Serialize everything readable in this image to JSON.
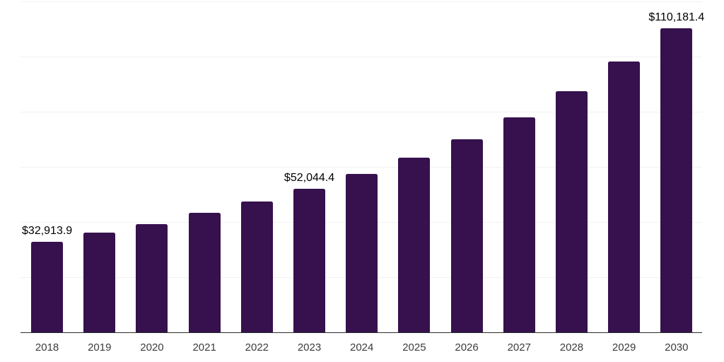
{
  "chart_data": {
    "type": "bar",
    "title": "",
    "xlabel": "",
    "ylabel": "",
    "categories": [
      "2018",
      "2019",
      "2020",
      "2021",
      "2022",
      "2023",
      "2024",
      "2025",
      "2026",
      "2027",
      "2028",
      "2029",
      "2030"
    ],
    "values": [
      32913.9,
      36100,
      39300,
      43300,
      47400,
      52044.4,
      57400,
      63300,
      70000,
      77900,
      87400,
      98100,
      110181.4
    ],
    "data_labels": [
      {
        "category": "2018",
        "text": "$32,913.9"
      },
      {
        "category": "2023",
        "text": "$52,044.4"
      },
      {
        "category": "2030",
        "text": "$110,181.4"
      }
    ],
    "ylim": [
      0,
      120000
    ],
    "gridline_step": 20000,
    "grid": "horizontal-only",
    "legend": "none",
    "colors": {
      "bar": "#36114d",
      "background": "#ffffff",
      "gridline": "#f1f1f1",
      "axis_line": "#2b2b2b",
      "tick_label": "#3c3c3c",
      "data_label": "#000000"
    }
  }
}
